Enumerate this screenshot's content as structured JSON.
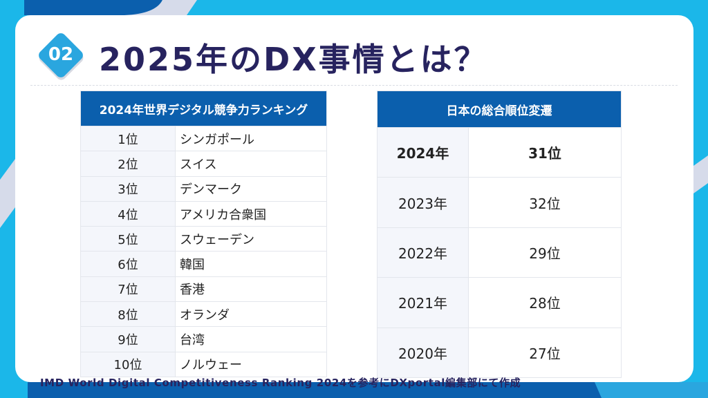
{
  "badge": "02",
  "title": "2025年のDX事情とは？",
  "ranking_table": {
    "header": "2024年世界デジタル競争力ランキング",
    "rows": [
      [
        "1位",
        "シンガポール"
      ],
      [
        "2位",
        "スイス"
      ],
      [
        "3位",
        "デンマーク"
      ],
      [
        "4位",
        "アメリカ合衆国"
      ],
      [
        "5位",
        "スウェーデン"
      ],
      [
        "6位",
        "韓国"
      ],
      [
        "7位",
        "香港"
      ],
      [
        "8位",
        "オランダ"
      ],
      [
        "9位",
        "台湾"
      ],
      [
        "10位",
        "ノルウェー"
      ]
    ]
  },
  "japan_table": {
    "header": "日本の総合順位変遷",
    "rows": [
      [
        "2024年",
        "31位"
      ],
      [
        "2023年",
        "32位"
      ],
      [
        "2022年",
        "29位"
      ],
      [
        "2021年",
        "28位"
      ],
      [
        "2020年",
        "27位"
      ]
    ]
  },
  "footer": "IMD World Digital Competitiveness Ranking 2024を参考にDXportal編集部にて作成",
  "colors": {
    "header": "#0b5fad",
    "title": "#27235f",
    "accent": "#2aa6df",
    "background": "#1bb7e9"
  }
}
